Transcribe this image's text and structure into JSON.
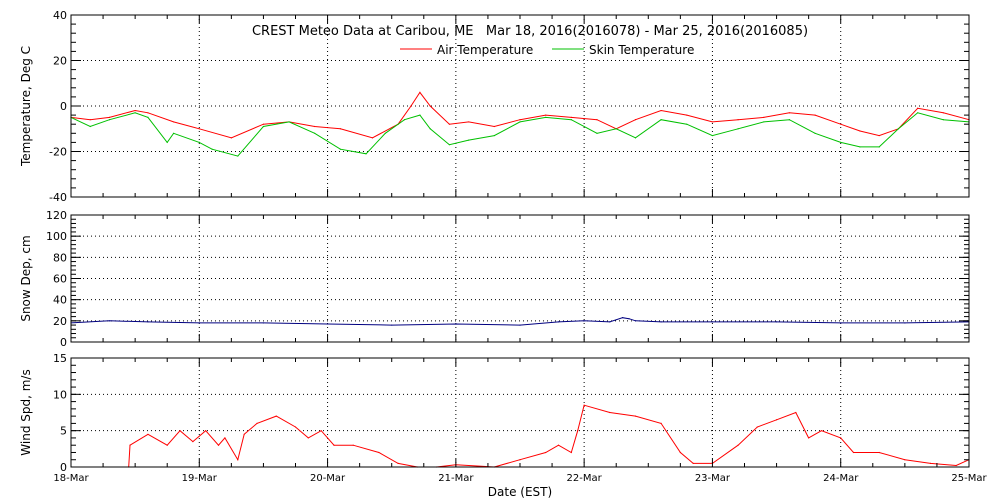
{
  "title": "CREST Meteo Data at Caribou, ME   Mar 18, 2016(2016078) - Mar 25, 2016(2016085)",
  "x_axis_label": "Date (EST)",
  "x_tick_labels": [
    "18-Mar",
    "19-Mar",
    "20-Mar",
    "21-Mar",
    "22-Mar",
    "23-Mar",
    "24-Mar",
    "25-Mar"
  ],
  "colors": {
    "air": "#ff0000",
    "skin": "#00c000",
    "snow": "#000080",
    "wind": "#ff0000",
    "axis": "#000000"
  },
  "chart_data": [
    {
      "type": "line",
      "ylabel": "Temperature, Deg C",
      "xlim": [
        0,
        7
      ],
      "ylim": [
        -40,
        40
      ],
      "yticks": [
        -40,
        -20,
        0,
        20,
        40
      ],
      "grid": true,
      "legend_position": "top-center",
      "series": [
        {
          "name": "Air Temperature",
          "color": "#ff0000",
          "x": [
            0,
            0.15,
            0.3,
            0.5,
            0.6,
            0.8,
            1.0,
            1.25,
            1.5,
            1.7,
            1.9,
            2.1,
            2.35,
            2.55,
            2.65,
            2.72,
            2.8,
            2.95,
            3.1,
            3.3,
            3.5,
            3.7,
            3.9,
            4.1,
            4.25,
            4.4,
            4.6,
            4.8,
            5.0,
            5.2,
            5.4,
            5.6,
            5.8,
            6.0,
            6.15,
            6.3,
            6.45,
            6.6,
            6.8,
            7.0
          ],
          "y": [
            -5,
            -6,
            -5,
            -2,
            -3,
            -7,
            -10,
            -14,
            -8,
            -7,
            -9,
            -10,
            -14,
            -8,
            0,
            6,
            0,
            -8,
            -7,
            -9,
            -6,
            -4,
            -5,
            -6,
            -10,
            -6,
            -2,
            -4,
            -7,
            -6,
            -5,
            -3,
            -4,
            -8,
            -11,
            -13,
            -10,
            -1,
            -3,
            -6
          ]
        },
        {
          "name": "Skin Temperature",
          "color": "#00c000",
          "x": [
            0,
            0.15,
            0.3,
            0.5,
            0.6,
            0.75,
            0.8,
            1.0,
            1.1,
            1.3,
            1.5,
            1.7,
            1.9,
            2.1,
            2.3,
            2.45,
            2.6,
            2.72,
            2.8,
            2.95,
            3.1,
            3.3,
            3.5,
            3.7,
            3.9,
            4.1,
            4.25,
            4.4,
            4.6,
            4.8,
            5.0,
            5.2,
            5.4,
            5.6,
            5.8,
            6.0,
            6.15,
            6.3,
            6.45,
            6.6,
            6.8,
            7.0
          ],
          "y": [
            -5,
            -9,
            -6,
            -3,
            -5,
            -16,
            -12,
            -16,
            -19,
            -22,
            -9,
            -7,
            -12,
            -19,
            -21,
            -12,
            -6,
            -4,
            -10,
            -17,
            -15,
            -13,
            -7,
            -5,
            -6,
            -12,
            -10,
            -14,
            -6,
            -8,
            -13,
            -10,
            -7,
            -6,
            -12,
            -16,
            -18,
            -18,
            -10,
            -3,
            -6,
            -7
          ]
        }
      ]
    },
    {
      "type": "line",
      "ylabel": "Snow Dep, cm",
      "xlim": [
        0,
        7
      ],
      "ylim": [
        0,
        120
      ],
      "yticks": [
        0,
        20,
        40,
        60,
        80,
        100,
        120
      ],
      "grid": true,
      "series": [
        {
          "color": "#000080",
          "x": [
            0,
            0.3,
            0.6,
            1.0,
            1.5,
            2.0,
            2.5,
            3.0,
            3.5,
            3.8,
            4.0,
            4.2,
            4.3,
            4.35,
            4.4,
            4.6,
            5.0,
            5.5,
            6.0,
            6.5,
            7.0
          ],
          "y": [
            18,
            20,
            19,
            18,
            18,
            17,
            16,
            17,
            16,
            19,
            20,
            19,
            23,
            22,
            20,
            19,
            19,
            19,
            18,
            18,
            19
          ]
        }
      ]
    },
    {
      "type": "line",
      "ylabel": "Wind Spd, m/s",
      "xlim": [
        0,
        7
      ],
      "ylim": [
        0,
        15
      ],
      "yticks": [
        0,
        5,
        10,
        15
      ],
      "grid": true,
      "series": [
        {
          "color": "#ff0000",
          "x": [
            0.45,
            0.46,
            0.6,
            0.75,
            0.85,
            0.95,
            1.05,
            1.15,
            1.2,
            1.3,
            1.35,
            1.45,
            1.6,
            1.75,
            1.85,
            1.95,
            2.05,
            2.2,
            2.4,
            2.55,
            2.7,
            2.85,
            3.0,
            3.3,
            3.5,
            3.7,
            3.8,
            3.9,
            3.95,
            4.0,
            4.2,
            4.4,
            4.6,
            4.75,
            4.85,
            5.0,
            5.2,
            5.35,
            5.5,
            5.65,
            5.75,
            5.85,
            6.0,
            6.1,
            6.3,
            6.5,
            6.7,
            6.9,
            7.0
          ],
          "y": [
            0,
            3,
            4.5,
            3,
            5,
            3.5,
            5,
            3,
            4,
            1,
            4.5,
            6,
            7,
            5.5,
            4,
            5,
            3,
            3,
            2,
            0.5,
            0,
            0,
            0.3,
            0,
            1,
            2,
            3,
            2,
            5,
            8.5,
            7.5,
            7,
            6,
            2,
            0.5,
            0.5,
            3,
            5.5,
            6.5,
            7.5,
            4,
            5,
            4,
            2,
            2,
            1,
            0.5,
            0.2,
            1
          ]
        }
      ]
    }
  ]
}
